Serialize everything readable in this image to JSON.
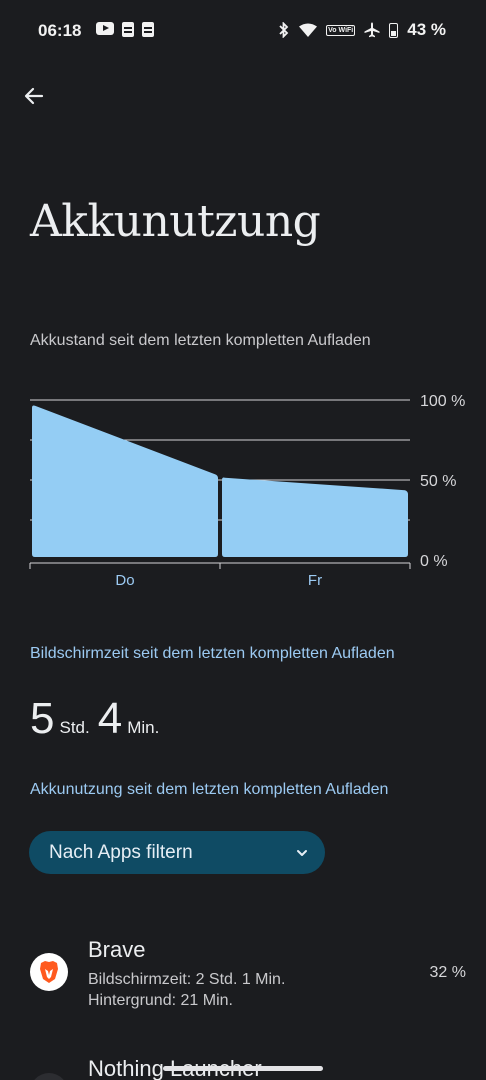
{
  "status_bar": {
    "time": "06:18",
    "left_icons": [
      "youtube-icon",
      "message-icon",
      "message-icon"
    ],
    "right_icons": [
      "bluetooth-icon",
      "wifi-icon",
      "vowifi-icon",
      "airplane-icon",
      "battery-icon"
    ],
    "vowifi_label": "Vo WiFi",
    "battery_pct": "43 %"
  },
  "header": {
    "back_icon": "arrow-left-icon",
    "title": "Akkunutzung"
  },
  "chart": {
    "caption": "Akkustand seit dem letzten kompletten Aufladen",
    "fill_color": "#94cdf4"
  },
  "chart_data": {
    "type": "area",
    "title": "",
    "xlabel": "",
    "ylabel": "",
    "categories": [
      "Do",
      "Fr"
    ],
    "y_tick_labels": [
      "100 %",
      "50 %",
      "0 %"
    ],
    "ylim": [
      0,
      100
    ],
    "grid": true,
    "series": [
      {
        "segments": [
          {
            "category": "Do",
            "start_value": 97,
            "end_value": 53
          },
          {
            "category": "Fr",
            "start_value": 52,
            "end_value": 43
          }
        ]
      }
    ]
  },
  "screen_time": {
    "heading": "Bildschirmzeit seit dem letzten kompletten Aufladen",
    "hours": "5",
    "hours_unit": "Std.",
    "minutes": "4",
    "minutes_unit": "Min."
  },
  "usage": {
    "heading": "Akkunutzung seit dem letzten kompletten Aufladen",
    "filter_label": "Nach Apps filtern",
    "filter_icon": "chevron-down-icon",
    "apps": [
      {
        "name": "Brave",
        "screen_time": "Bildschirmzeit: 2 Std. 1 Min.",
        "background": "Hintergrund: 21 Min.",
        "percent": "32 %",
        "icon": "brave-lion-icon",
        "icon_color": "#ff5a1f"
      },
      {
        "name": "Nothing Launcher",
        "icon": "nothing-launcher-icon"
      }
    ]
  }
}
